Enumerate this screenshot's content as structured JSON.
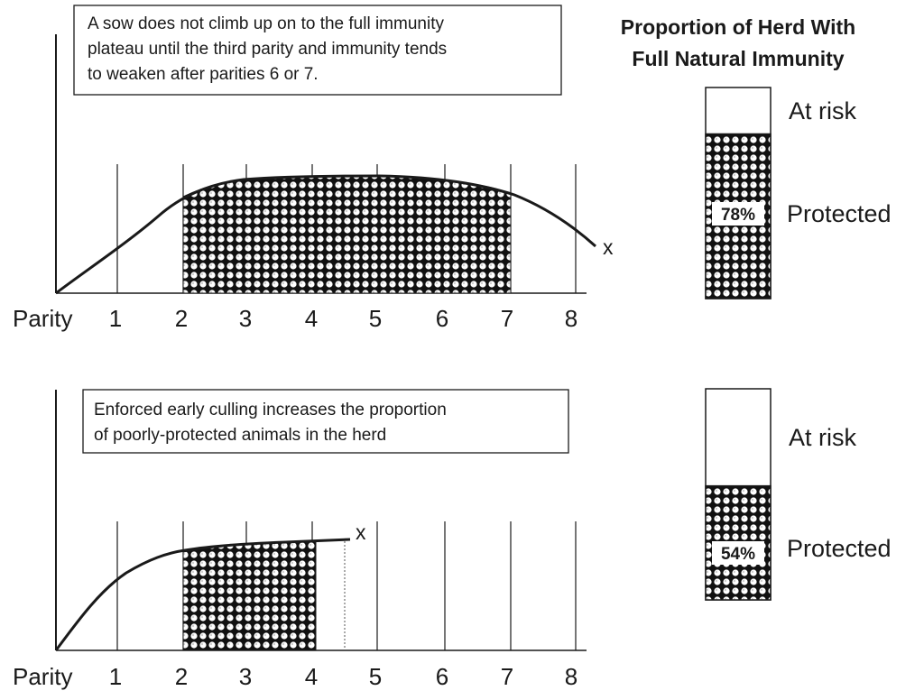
{
  "top_panel": {
    "note_lines": [
      "A sow does not climb up on to the full immunity",
      "plateau until the third parity and immunity tends",
      "to weaken after parities 6 or 7."
    ],
    "axis_label": "Parity",
    "parity_ticks": [
      "1",
      "2",
      "3",
      "4",
      "5",
      "6",
      "7",
      "8"
    ],
    "end_marker": "x",
    "bar": {
      "at_risk_label": "At risk",
      "protected_label": "Protected",
      "protected_pct": "78%",
      "protected_fraction": 0.78
    }
  },
  "bottom_panel": {
    "note_lines": [
      "Enforced early culling increases the proportion",
      "of poorly-protected animals in the herd"
    ],
    "axis_label": "Parity",
    "parity_ticks": [
      "1",
      "2",
      "3",
      "4",
      "5",
      "6",
      "7",
      "8"
    ],
    "end_marker": "x",
    "bar": {
      "at_risk_label": "At risk",
      "protected_label": "Protected",
      "protected_pct": "54%",
      "protected_fraction": 0.54
    }
  },
  "right_title_lines": [
    "Proportion of Herd With",
    "Full Natural Immunity"
  ],
  "colors": {
    "ink": "#1a1a1a",
    "pattern_dark": "#111111",
    "pattern_light": "#ffffff"
  }
}
